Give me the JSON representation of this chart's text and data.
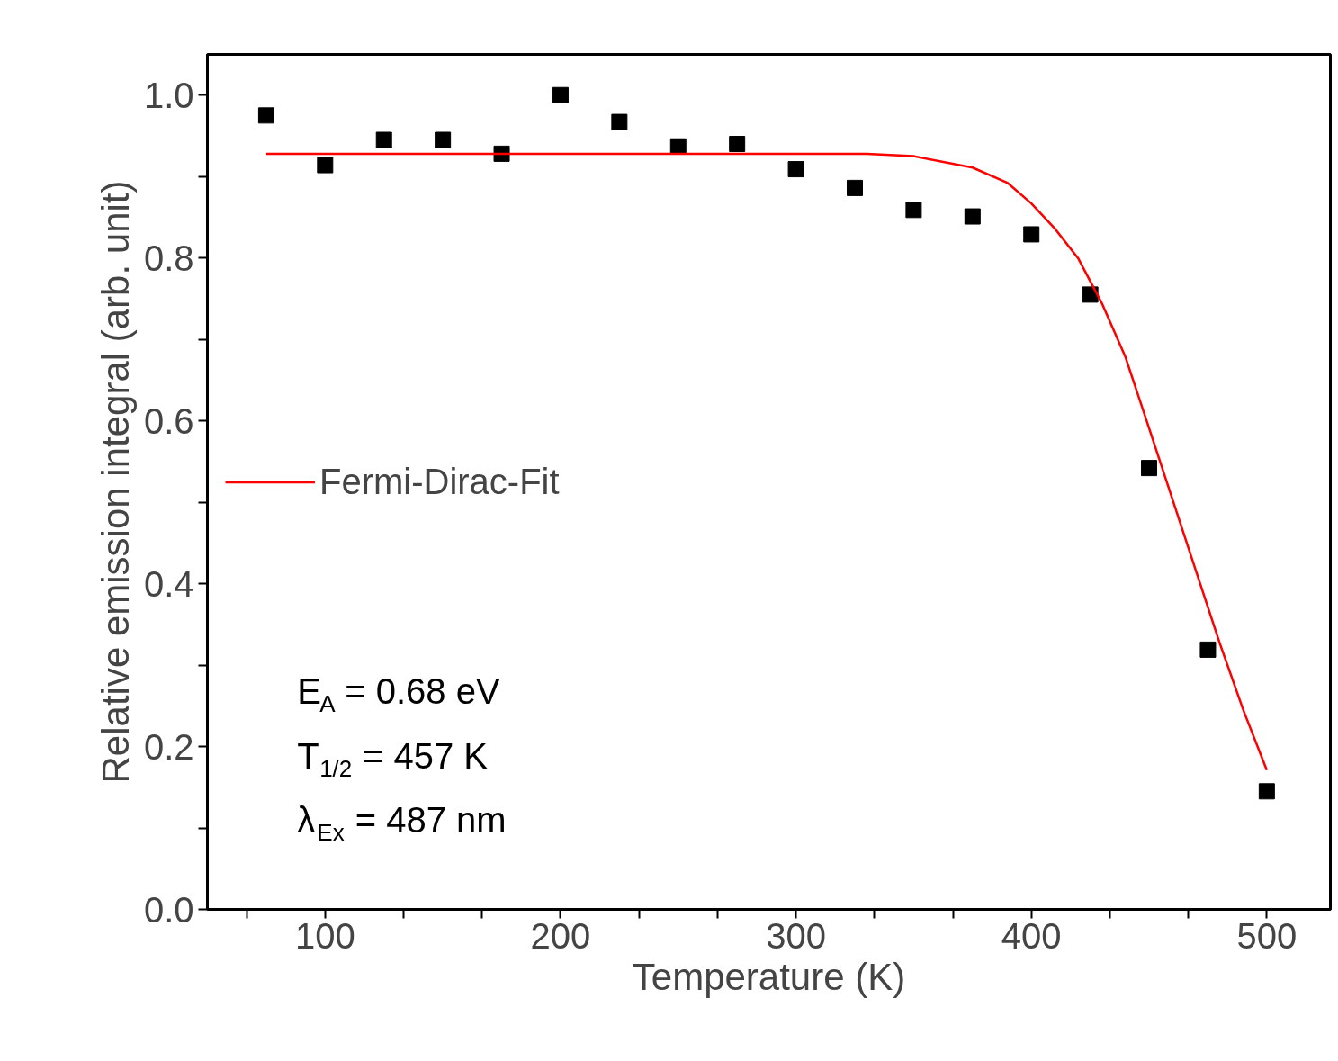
{
  "chart_data": {
    "type": "scatter",
    "xlabel": "Temperature (K)",
    "ylabel": "Relative emission integral (arb. unit)",
    "xlim": [
      50,
      527
    ],
    "ylim": [
      0,
      1.05
    ],
    "xticks": [
      {
        "value": 66.67,
        "label": null
      },
      100,
      {
        "value": 133.33,
        "label": null
      },
      {
        "value": 166.67,
        "label": null
      },
      200,
      {
        "value": 233.33,
        "label": null
      },
      {
        "value": 266.67,
        "label": null
      },
      300,
      {
        "value": 333.33,
        "label": null
      },
      {
        "value": 366.67,
        "label": null
      },
      400,
      {
        "value": 433.33,
        "label": null
      },
      {
        "value": 466.67,
        "label": null
      },
      500
    ],
    "yticks": [
      {
        "value": 0,
        "label": "0.0"
      },
      {
        "value": 0.1,
        "label": null
      },
      0.2,
      {
        "value": 0.3,
        "label": null
      },
      0.4,
      {
        "value": 0.5,
        "label": null
      },
      0.6,
      {
        "value": 0.7,
        "label": null
      },
      0.8,
      {
        "value": 0.9,
        "label": null
      },
      {
        "value": 1,
        "label": "1.0"
      }
    ],
    "grid": false,
    "legend": "left",
    "series": [
      {
        "marker": "square",
        "color": "#000000",
        "x": [
          75,
          100,
          125,
          150,
          175,
          200,
          225,
          250,
          275,
          300,
          325,
          350,
          375,
          400,
          425,
          450,
          475,
          500
        ],
        "values": [
          0.975,
          0.914,
          0.945,
          0.945,
          0.928,
          1.0,
          0.967,
          0.937,
          0.94,
          0.909,
          0.886,
          0.859,
          0.851,
          0.829,
          0.755,
          0.542,
          0.319,
          0.145
        ]
      },
      {
        "type": "line",
        "name": "Fermi-Dirac-Fit",
        "color": "#ff0000",
        "x": [
          75,
          150,
          250,
          330,
          350,
          375,
          390,
          400,
          410,
          420,
          430,
          440,
          450,
          460,
          470,
          480,
          490,
          500
        ],
        "values": [
          0.928,
          0.928,
          0.928,
          0.928,
          0.925,
          0.911,
          0.892,
          0.867,
          0.836,
          0.799,
          0.744,
          0.678,
          0.591,
          0.503,
          0.415,
          0.327,
          0.245,
          0.171
        ]
      }
    ],
    "annotations": [
      "E$_{A}$ = 0.68 eV",
      "T$_{1/2}$ = 457 K",
      "λ$_{Ex}$ = 487 nm"
    ]
  }
}
